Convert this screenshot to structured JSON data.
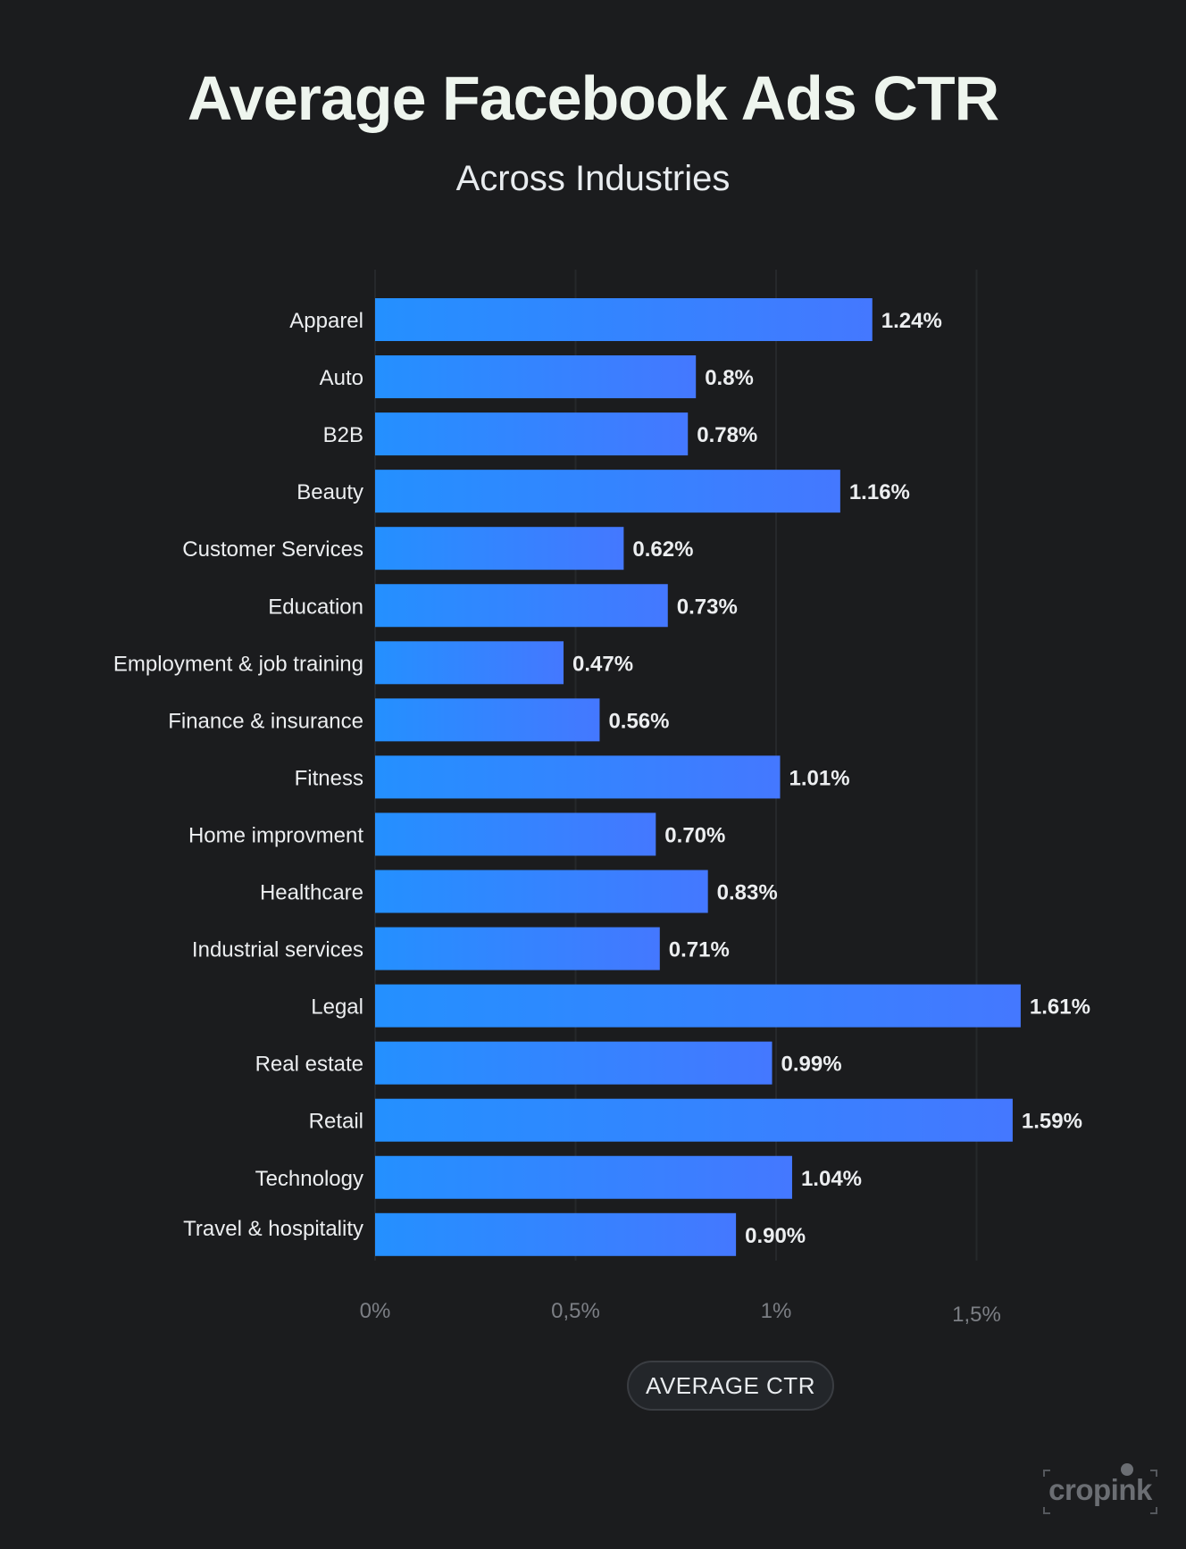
{
  "chart_data": {
    "type": "bar",
    "orientation": "horizontal",
    "title": "Average Facebook Ads CTR",
    "subtitle": "Across Industries",
    "xlabel": "AVERAGE CTR",
    "categories": [
      "Apparel",
      "Auto",
      "B2B",
      "Beauty",
      "Customer Services",
      "Education",
      "Employment & job training",
      "Finance & insurance",
      "Fitness",
      "Home improvment",
      "Healthcare",
      "Industrial services",
      "Legal",
      "Real estate",
      "Retail",
      "Technology",
      "Travel & hospitality"
    ],
    "values": [
      1.24,
      0.8,
      0.78,
      1.16,
      0.62,
      0.73,
      0.47,
      0.56,
      1.01,
      0.7,
      0.83,
      0.71,
      1.61,
      0.99,
      1.59,
      1.04,
      0.9
    ],
    "value_labels": [
      "1.24%",
      "0.8%",
      "0.78%",
      "1.16%",
      "0.62%",
      "0.73%",
      "0.47%",
      "0.56%",
      "1.01%",
      "0.70%",
      "0.83%",
      "0.71%",
      "1.61%",
      "0.99%",
      "1.59%",
      "1.04%",
      "0.90%"
    ],
    "x_ticks": [
      {
        "value": 0,
        "label": "0%"
      },
      {
        "value": 0.5,
        "label": "0,5%"
      },
      {
        "value": 1,
        "label": "1%"
      },
      {
        "value": 1.5,
        "label": "1,5%"
      }
    ],
    "xlim": [
      0,
      1.5
    ],
    "grid": true,
    "colors": {
      "bar_start": "#2490ff",
      "bar_end": "#4478ff",
      "background": "#1b1c1e",
      "grid": "#26282b"
    }
  },
  "brand": {
    "logo_text": "cropink",
    "logo_icon": "cropink-dot-icon"
  }
}
